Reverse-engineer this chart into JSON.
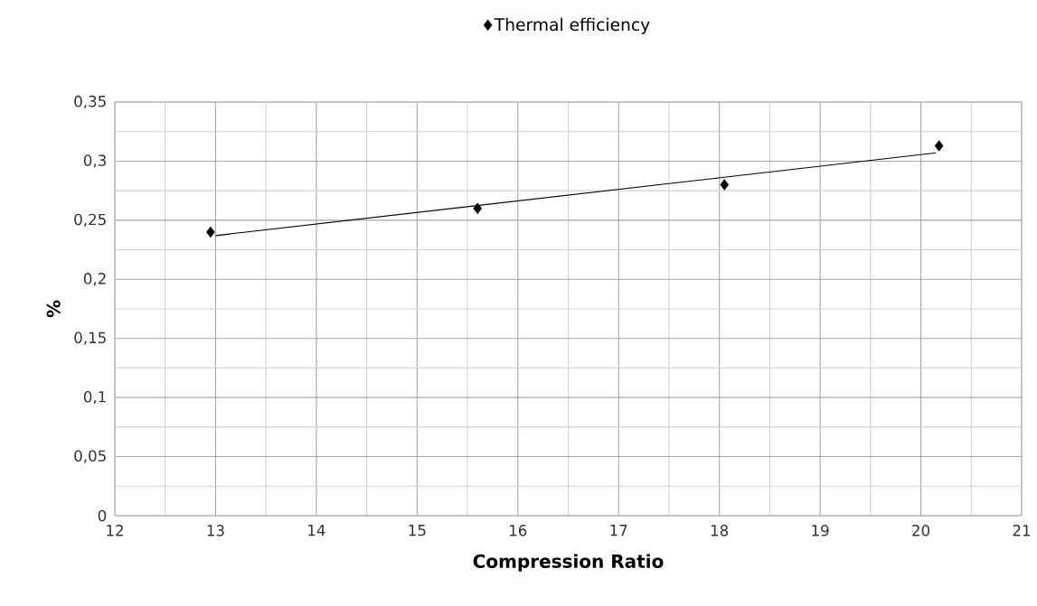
{
  "chart_data": {
    "type": "scatter",
    "xlabel": "Compression Ratio",
    "ylabel": "%",
    "series": [
      {
        "name": "Thermal efficiency",
        "color": "#000000",
        "marker": "diamond",
        "x": [
          12.95,
          15.6,
          18.05,
          20.18
        ],
        "values": [
          0.24,
          0.26,
          0.28,
          0.313
        ]
      },
      {
        "type": "line",
        "color": "#000000",
        "marker": "none",
        "x": [
          13.0,
          20.15
        ],
        "values": [
          0.237,
          0.307
        ]
      }
    ],
    "xlim": [
      12,
      21
    ],
    "xticks": [
      12,
      13,
      14,
      15,
      16,
      17,
      18,
      19,
      20,
      21
    ],
    "ylim": [
      0,
      0.35
    ],
    "yticks": [
      0,
      {
        "value": 0.05,
        "label": "0,05"
      },
      {
        "value": 0.1,
        "label": "0,1"
      },
      {
        "value": 0.15,
        "label": "0,15"
      },
      {
        "value": 0.2,
        "label": "0,2"
      },
      {
        "value": 0.25,
        "label": "0,25"
      },
      {
        "value": 0.3,
        "label": "0,3"
      },
      {
        "value": 0.35,
        "label": "0,35"
      }
    ],
    "grid": true,
    "legend": "top"
  }
}
